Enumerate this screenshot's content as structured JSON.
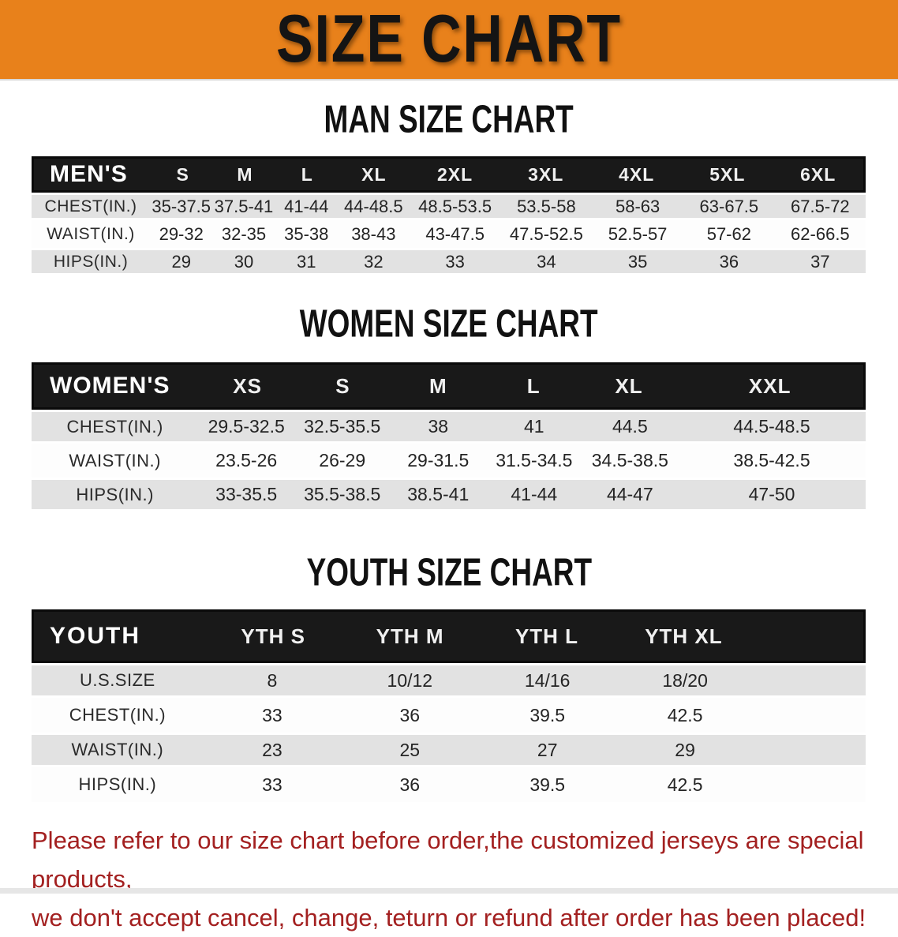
{
  "banner": {
    "title": "SIZE CHART"
  },
  "sections": [
    {
      "heading": "MAN SIZE CHART",
      "table": {
        "label": "MEN'S",
        "columns": [
          "S",
          "M",
          "L",
          "XL",
          "2XL",
          "3XL",
          "4XL",
          "5XL",
          "6XL"
        ],
        "rows": [
          {
            "label": "CHEST(IN.)",
            "values": [
              "35-37.5",
              "37.5-41",
              "41-44",
              "44-48.5",
              "48.5-53.5",
              "53.5-58",
              "58-63",
              "63-67.5",
              "67.5-72"
            ]
          },
          {
            "label": "WAIST(IN.)",
            "values": [
              "29-32",
              "32-35",
              "35-38",
              "38-43",
              "43-47.5",
              "47.5-52.5",
              "52.5-57",
              "57-62",
              "62-66.5"
            ]
          },
          {
            "label": "HIPS(IN.)",
            "values": [
              "29",
              "30",
              "31",
              "32",
              "33",
              "34",
              "35",
              "36",
              "37"
            ]
          }
        ]
      }
    },
    {
      "heading": "WOMEN SIZE CHART",
      "table": {
        "label": "WOMEN'S",
        "columns": [
          "XS",
          "S",
          "M",
          "L",
          "XL",
          "XXL"
        ],
        "rows": [
          {
            "label": "CHEST(IN.)",
            "values": [
              "29.5-32.5",
              "32.5-35.5",
              "38",
              "41",
              "44.5",
              "44.5-48.5"
            ]
          },
          {
            "label": "WAIST(IN.)",
            "values": [
              "23.5-26",
              "26-29",
              "29-31.5",
              "31.5-34.5",
              "34.5-38.5",
              "38.5-42.5"
            ]
          },
          {
            "label": "HIPS(IN.)",
            "values": [
              "33-35.5",
              "35.5-38.5",
              "38.5-41",
              "41-44",
              "44-47",
              "47-50"
            ]
          }
        ]
      }
    },
    {
      "heading": "YOUTH SIZE CHART",
      "table": {
        "label": "YOUTH",
        "columns": [
          "YTH S",
          "YTH M",
          "YTH L",
          "YTH XL"
        ],
        "rows": [
          {
            "label": "U.S.SIZE",
            "values": [
              "8",
              "10/12",
              "14/16",
              "18/20"
            ]
          },
          {
            "label": "CHEST(IN.)",
            "values": [
              "33",
              "36",
              "39.5",
              "42.5"
            ]
          },
          {
            "label": "WAIST(IN.)",
            "values": [
              "23",
              "25",
              "27",
              "29"
            ]
          },
          {
            "label": "HIPS(IN.)",
            "values": [
              "33",
              "36",
              "39.5",
              "42.5"
            ]
          }
        ]
      }
    }
  ],
  "disclaimer": {
    "line1": "Please refer to our size chart before order,the customized jerseys are special products,",
    "line2": "we don't accept cancel, change, teturn or refund after order has been placed!"
  },
  "colors": {
    "banner_orange": "#E8811B",
    "header_black": "#191919",
    "row_gray": "#E2E2E2",
    "disclaimer_red": "#A32020"
  }
}
